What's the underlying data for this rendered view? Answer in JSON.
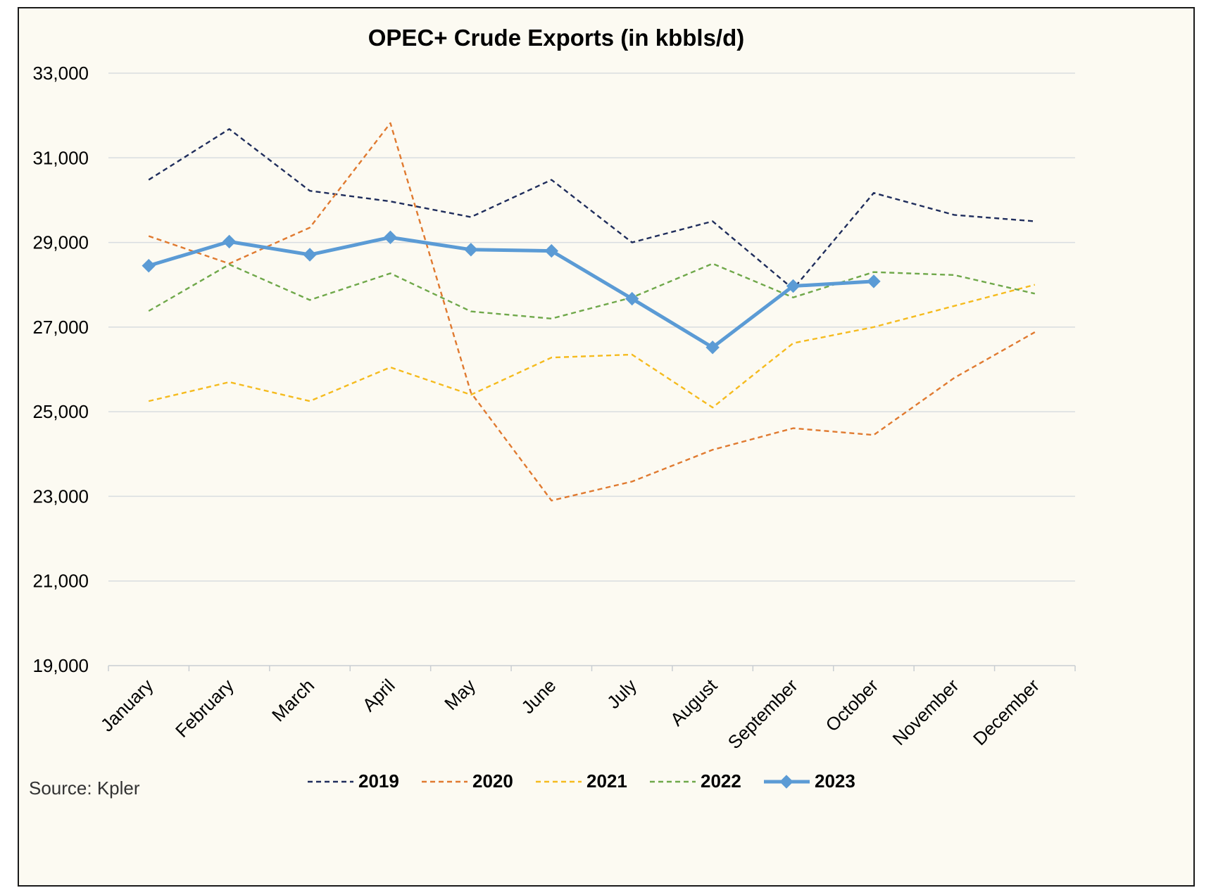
{
  "chart_data": {
    "type": "line",
    "title": "OPEC+ Crude Exports (in kbbls/d)",
    "source": "Source: Kpler",
    "categories": [
      "January",
      "February",
      "March",
      "April",
      "May",
      "June",
      "July",
      "August",
      "September",
      "October",
      "November",
      "December"
    ],
    "ylim": [
      19000,
      33000
    ],
    "yticks": [
      19000,
      21000,
      23000,
      25000,
      27000,
      29000,
      31000,
      33000
    ],
    "ytick_labels": [
      "19,000",
      "21,000",
      "23,000",
      "25,000",
      "27,000",
      "29,000",
      "31,000",
      "33,000"
    ],
    "grid": "horizontal",
    "legend_position": "bottom",
    "series": [
      {
        "name": "2019",
        "color": "#1f2d5c",
        "style": "dashed",
        "marker": "none",
        "values": [
          30480,
          31680,
          30220,
          29970,
          29600,
          30480,
          29000,
          29500,
          27900,
          30170,
          29650,
          29500
        ]
      },
      {
        "name": "2020",
        "color": "#e07a30",
        "style": "dashed",
        "marker": "none",
        "values": [
          29150,
          28500,
          29350,
          31820,
          25450,
          22900,
          23350,
          24100,
          24610,
          24450,
          25800,
          26880
        ]
      },
      {
        "name": "2021",
        "color": "#f5bb1e",
        "style": "dashed",
        "marker": "none",
        "values": [
          25250,
          25700,
          25250,
          26050,
          25400,
          26280,
          26350,
          25100,
          26620,
          27000,
          27500,
          28000
        ]
      },
      {
        "name": "2022",
        "color": "#6fa84a",
        "style": "dashed",
        "marker": "none",
        "values": [
          27380,
          28480,
          27640,
          28270,
          27370,
          27200,
          27700,
          28500,
          27700,
          28300,
          28230,
          27790
        ]
      },
      {
        "name": "2023",
        "color": "#5b9bd5",
        "style": "solid",
        "marker": "diamond",
        "values": [
          28450,
          29020,
          28710,
          29120,
          28830,
          28800,
          27670,
          26520,
          27970,
          28080,
          null,
          null
        ]
      }
    ]
  }
}
